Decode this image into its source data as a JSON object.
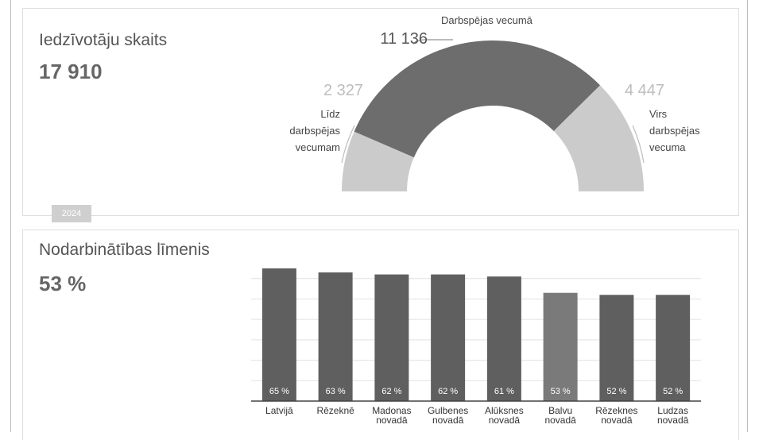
{
  "population": {
    "title": "Iedzīvotāju skaits",
    "total": "17 910",
    "year": "2024"
  },
  "employment": {
    "title": "Nodarbinātības līmenis",
    "value": "53 %"
  },
  "chart_data": [
    {
      "type": "pie",
      "variant": "semi-donut",
      "slices": [
        {
          "label_lines": [
            "Līdz",
            "darbspējas",
            "vecumam"
          ],
          "value": 2327,
          "value_label": "2 327",
          "color": "#cbcbcb"
        },
        {
          "label_lines": [
            "Darbspējas vecumā"
          ],
          "value": 11136,
          "value_label": "11 136",
          "color": "#6d6d6d"
        },
        {
          "label_lines": [
            "Virs",
            "darbspējas",
            "vecuma"
          ],
          "value": 4447,
          "value_label": "4 447",
          "color": "#cbcbcb"
        }
      ]
    },
    {
      "type": "bar",
      "categories": [
        [
          "Latvijā"
        ],
        [
          "Rēzeknē"
        ],
        [
          "Madonas",
          "novadā"
        ],
        [
          "Gulbenes",
          "novadā"
        ],
        [
          "Alūksnes",
          "novadā"
        ],
        [
          "Balvu",
          "novadā"
        ],
        [
          "Rēzeknes",
          "novadā"
        ],
        [
          "Ludzas",
          "novadā"
        ]
      ],
      "values": [
        65,
        63,
        62,
        62,
        61,
        53,
        52,
        52
      ],
      "value_labels": [
        "65 %",
        "63 %",
        "62 %",
        "62 %",
        "61 %",
        "53 %",
        "52 %",
        "52 %"
      ],
      "colors": [
        "#5f5f5f",
        "#5f5f5f",
        "#5f5f5f",
        "#5f5f5f",
        "#5f5f5f",
        "#7a7a7a",
        "#5f5f5f",
        "#5f5f5f"
      ],
      "grid": true
    }
  ]
}
